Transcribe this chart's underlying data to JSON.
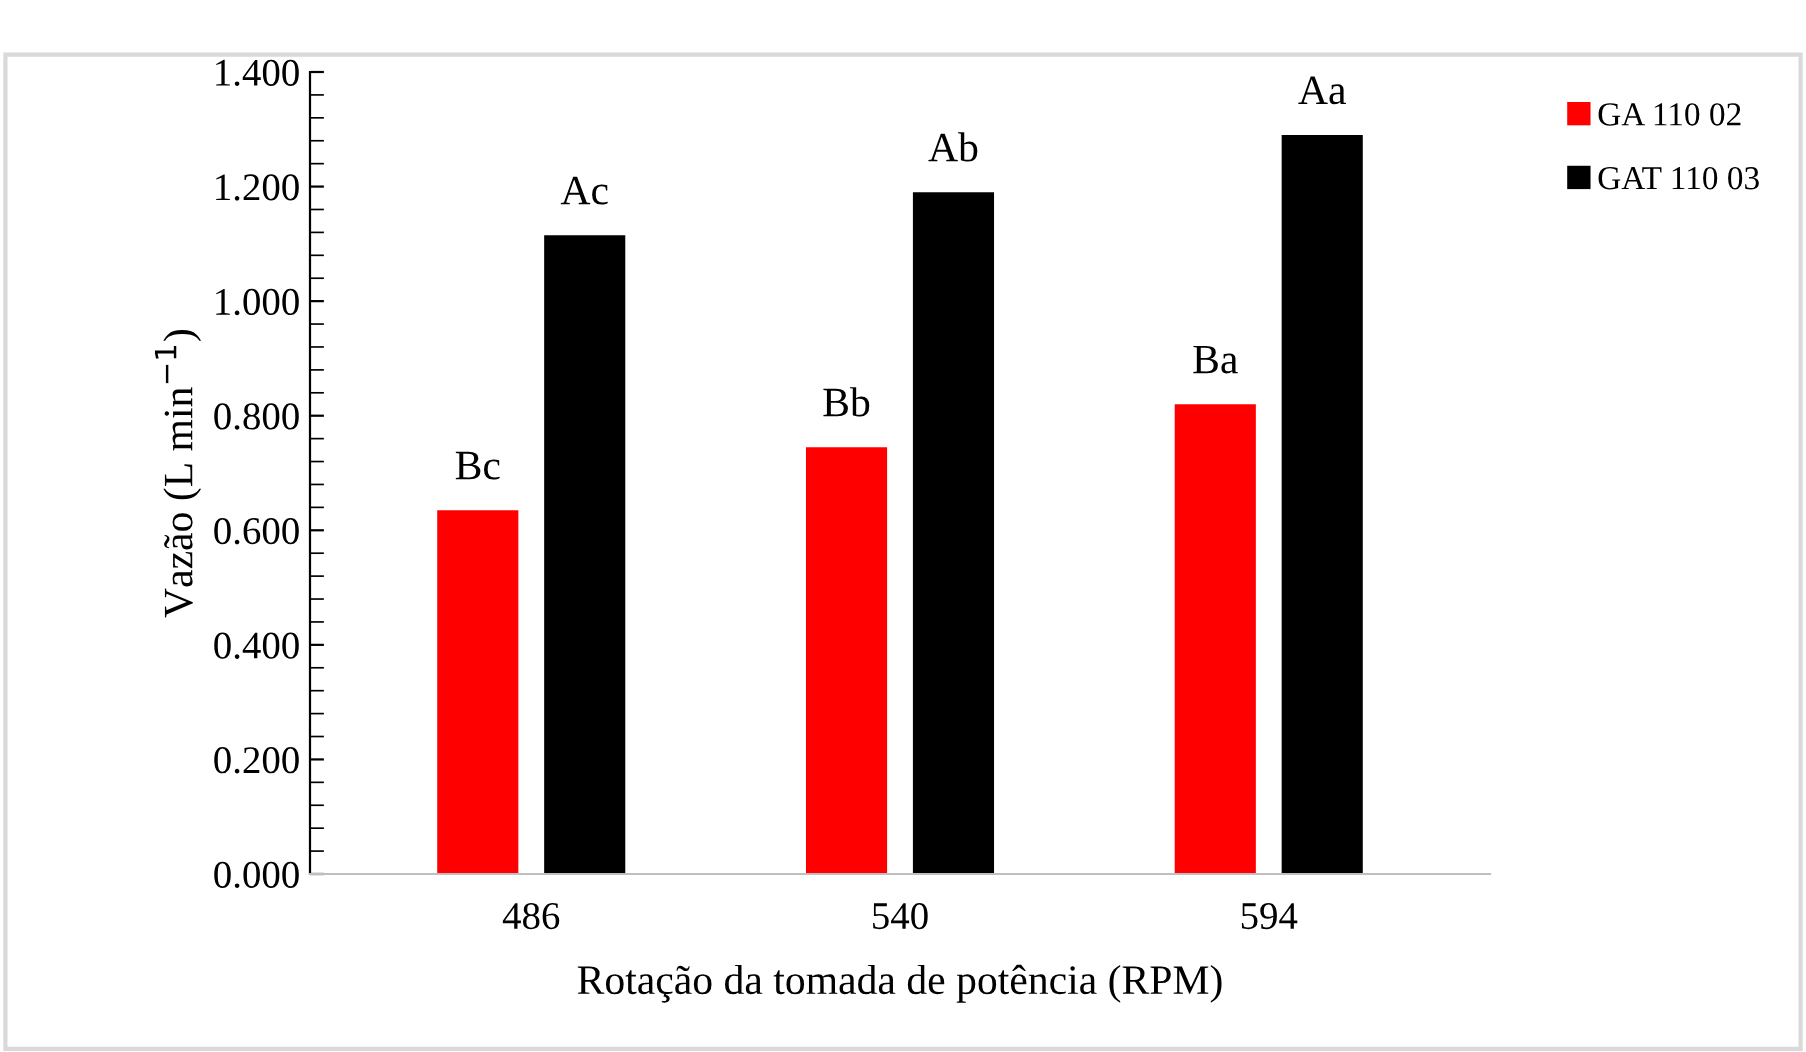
{
  "chart_data": {
    "type": "bar",
    "xlabel": "Rotação da tomada de potência (RPM)",
    "ylabel": "Vazão (L min$^{−1}$)",
    "categories": [
      "486",
      "540",
      "594"
    ],
    "series": [
      {
        "name": "GA 110 02",
        "color": "#ff0000",
        "values": [
          0.635,
          0.745,
          0.82
        ],
        "value_labels": [
          "Bc",
          "Bb",
          "Ba"
        ]
      },
      {
        "name": "GAT 110 03",
        "color": "#000000",
        "values": [
          1.115,
          1.19,
          1.29
        ],
        "value_labels": [
          "Ac",
          "Ab",
          "Aa"
        ]
      }
    ],
    "ylim": [
      0,
      1.4
    ],
    "yticks": [
      {
        "value": 0,
        "label": "0.000"
      },
      {
        "value": 0.2,
        "label": "0.200"
      },
      {
        "value": 0.4,
        "label": "0.400"
      },
      {
        "value": 0.6,
        "label": "0.600"
      },
      {
        "value": 0.8,
        "label": "0.800"
      },
      {
        "value": 1.0,
        "label": "1.000"
      },
      {
        "value": 1.2,
        "label": "1.200"
      },
      {
        "value": 1.4,
        "label": "1.400"
      }
    ],
    "grid": false,
    "legend": "top right"
  }
}
